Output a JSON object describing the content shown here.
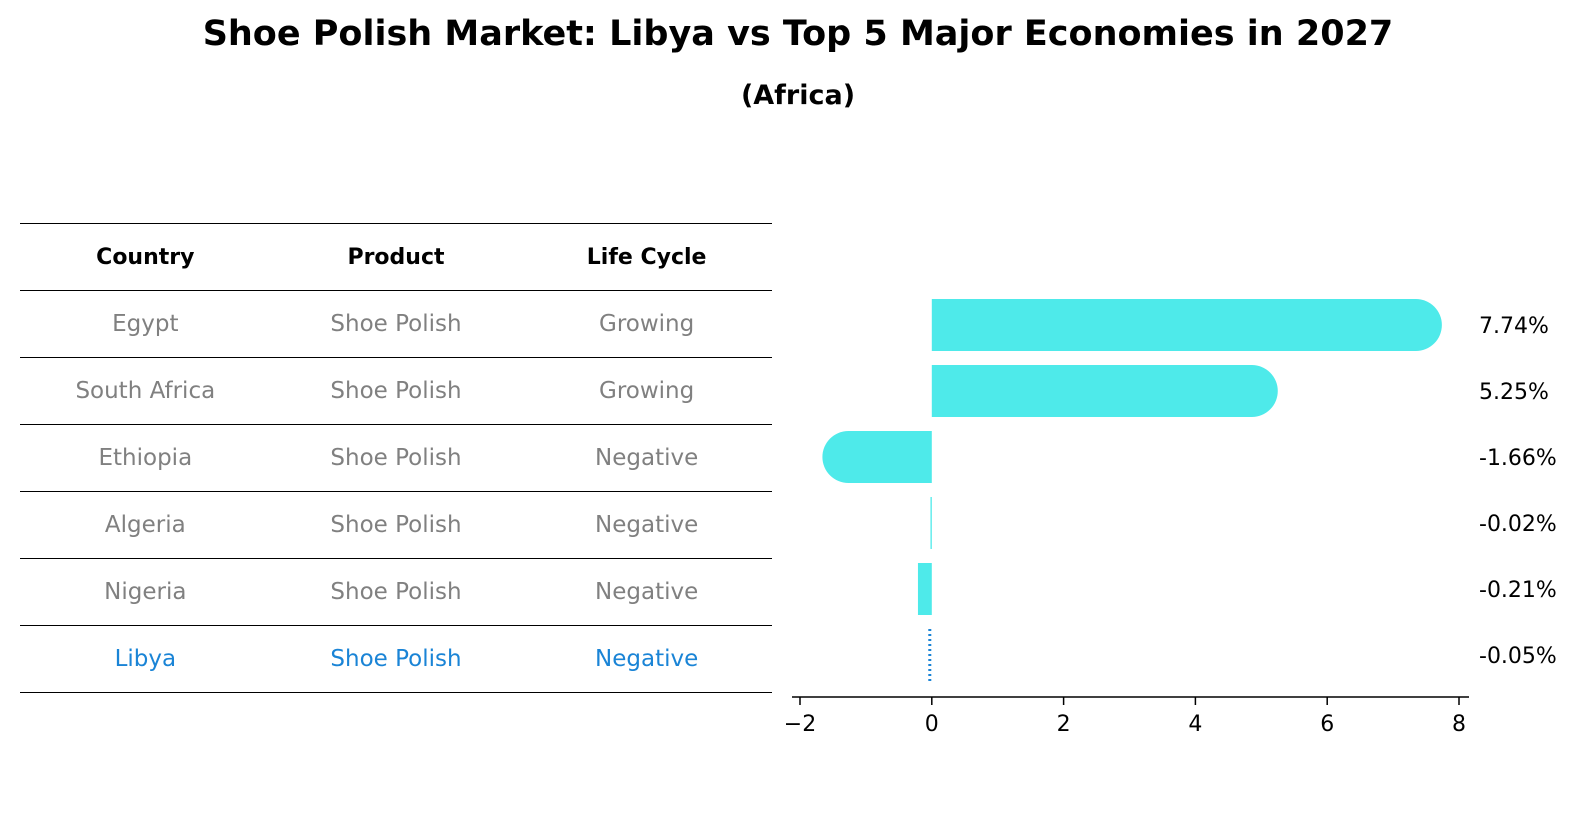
{
  "title": "Shoe Polish Market: Libya vs Top 5 Major Economies in 2027",
  "subtitle": "(Africa)",
  "table": {
    "headers": [
      "Country",
      "Product",
      "Life Cycle"
    ],
    "rows": [
      [
        "Egypt",
        "Shoe Polish",
        "Growing"
      ],
      [
        "South Africa",
        "Shoe Polish",
        "Growing"
      ],
      [
        "Ethiopia",
        "Shoe Polish",
        "Negative"
      ],
      [
        "Algeria",
        "Shoe Polish",
        "Negative"
      ],
      [
        "Nigeria",
        "Shoe Polish",
        "Negative"
      ],
      [
        "Libya",
        "Shoe Polish",
        "Negative"
      ]
    ],
    "highlight_row": 5
  },
  "colors": {
    "bar": "#4eeaea",
    "highlight": "#1a84d6",
    "muted_text": "#808080"
  },
  "chart_data": {
    "type": "bar",
    "orientation": "horizontal",
    "categories": [
      "Egypt",
      "South Africa",
      "Ethiopia",
      "Algeria",
      "Nigeria",
      "Libya"
    ],
    "values": [
      7.74,
      5.25,
      -1.66,
      -0.02,
      -0.21,
      -0.05
    ],
    "value_labels": [
      "7.74%",
      "5.25%",
      "-1.66%",
      "-0.02%",
      "-0.21%",
      "-0.05%"
    ],
    "xlim": [
      -2,
      8
    ],
    "xticks": [
      -2,
      0,
      2,
      4,
      6,
      8
    ],
    "xtick_labels": [
      "−2",
      "0",
      "2",
      "4",
      "6",
      "8"
    ],
    "highlight_category": "Libya",
    "grid": false,
    "legend": "none"
  }
}
